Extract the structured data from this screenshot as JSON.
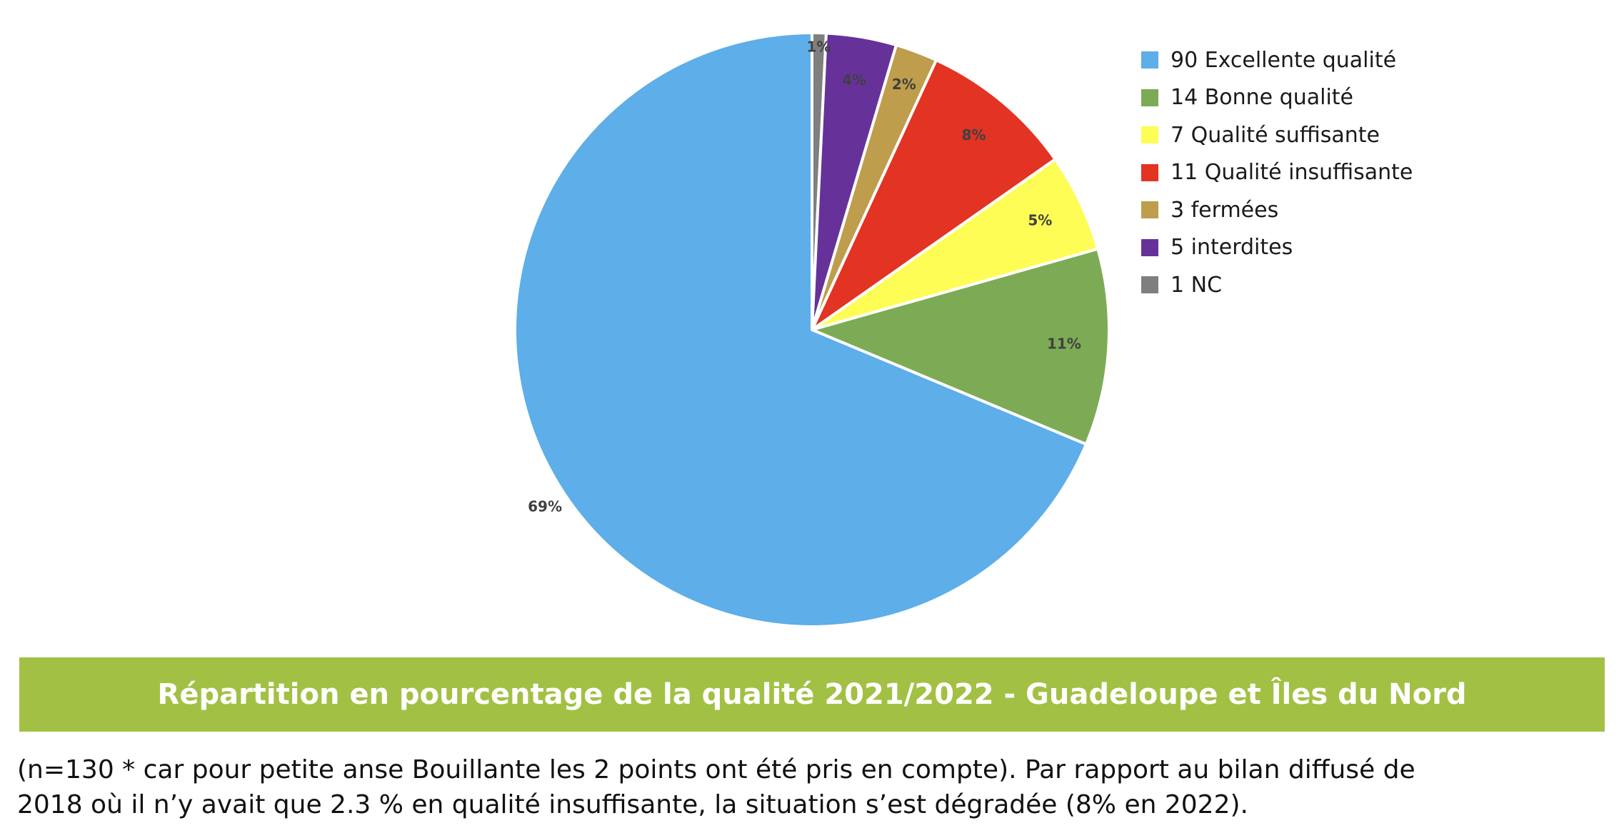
{
  "chart_data": {
    "type": "pie",
    "title": "Répartition en pourcentage de la qualité 2021/2022 - Guadeloupe et Îles du Nord",
    "slices": [
      {
        "label": "90 Excellente qualité",
        "value": 90,
        "pct_label": "69%",
        "color": "#5daee9"
      },
      {
        "label": "14 Bonne qualité",
        "value": 14,
        "pct_label": "11%",
        "color": "#7dab55"
      },
      {
        "label": "7 Qualité suffisante",
        "value": 7,
        "pct_label": "5%",
        "color": "#fdfd55"
      },
      {
        "label": "11 Qualité insuffisante",
        "value": 11,
        "pct_label": "8%",
        "color": "#e23323"
      },
      {
        "label": "3 fermées",
        "value": 3,
        "pct_label": "2%",
        "color": "#be9d4c"
      },
      {
        "label": "5 interdites",
        "value": 5,
        "pct_label": "4%",
        "color": "#66329a"
      },
      {
        "label": "1 NC",
        "value": 1,
        "pct_label": "1%",
        "color": "#7f7f7f"
      }
    ],
    "slice_order": "clockwise from top, starting with 1 NC",
    "legend_position": "top-right",
    "percent_label_color": "#404040"
  },
  "caption": {
    "line1": "(n=130 * car pour petite anse Bouillante les 2 points ont été pris en compte). Par rapport au bilan diffusé de",
    "line2": "2018 où il n’y avait que 2.3 % en qualité insuffisante, la situation s’est dégradée (8% en 2022)."
  },
  "colors": {
    "title_banner": "#a2c144",
    "title_text": "#ffffff",
    "slice_border": "#ffffff"
  }
}
